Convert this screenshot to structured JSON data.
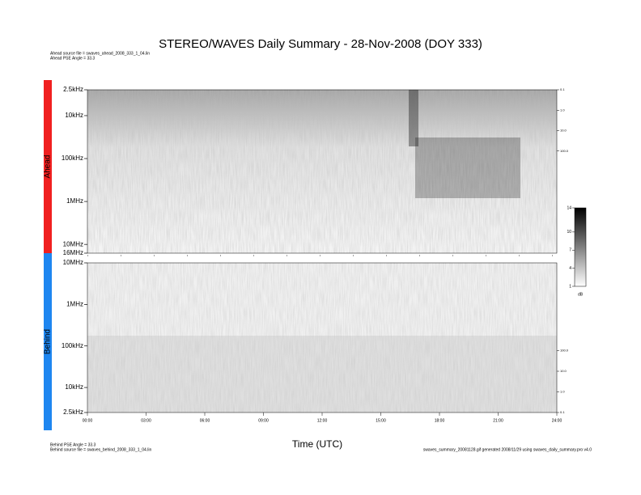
{
  "chart_data": [
    {
      "type": "heatmap",
      "title": "STEREO/WAVES Daily Summary - 28-Nov-2008 (DOY 333)",
      "name": "Ahead",
      "notes": [
        "Ahead source file = swaves_ahead_2008_333_1_04.lin",
        "Ahead PSE Angle = 33.3"
      ],
      "color": "#f02020",
      "log_y": true,
      "ylim": [
        16000000,
        2500
      ],
      "yticks": [
        {
          "value": 2500,
          "label": "2.5kHz"
        },
        {
          "value": 10000,
          "label": "10kHz"
        },
        {
          "value": 100000,
          "label": "100kHz"
        },
        {
          "value": 1000000,
          "label": "1MHz"
        },
        {
          "value": 10000000,
          "label": "10MHz"
        },
        {
          "value": 16000000,
          "label": "16MHz"
        }
      ],
      "y2lim": [
        10000000,
        0.1
      ],
      "y2ticks": [
        {
          "value": 0.1,
          "label": "0.1"
        },
        {
          "value": 1,
          "label": "1.0"
        },
        {
          "value": 10,
          "label": "10.0"
        },
        {
          "value": 100,
          "label": "100.0"
        }
      ],
      "colorbar": {
        "lim": [
          1,
          14
        ],
        "ticks": [
          1,
          4,
          7,
          10,
          14
        ],
        "label": "dB"
      }
    },
    {
      "type": "heatmap",
      "name": "Behind",
      "notes": [
        "Behind PSE Angle = 33.3",
        "Behind source file = swaves_behind_2008_333_1_04.lin"
      ],
      "footer": "swaves_summary_20081128.gif generated 2008/11/29 using swaves_daily_summary.pro v4.0",
      "color": "#1e86f0",
      "log_y": true,
      "ylim": [
        2500,
        10000000
      ],
      "yticks": [
        {
          "value": 10000000,
          "label": "10MHz"
        },
        {
          "value": 1000000,
          "label": "1MHz"
        },
        {
          "value": 100000,
          "label": "100kHz"
        },
        {
          "value": 10000,
          "label": "10kHz"
        },
        {
          "value": 2500,
          "label": "2.5kHz"
        }
      ],
      "y2lim": [
        0.1,
        1800000
      ],
      "y2ticks": [
        {
          "value": 100,
          "label": "100.0"
        },
        {
          "value": 10,
          "label": "10.0"
        },
        {
          "value": 1,
          "label": "1.0"
        },
        {
          "value": 0.1,
          "label": "0.1"
        }
      ],
      "xlim": [
        0,
        24
      ],
      "xticks": [
        {
          "value": 0,
          "label": "00:00"
        },
        {
          "value": 3,
          "label": "03:00"
        },
        {
          "value": 6,
          "label": "06:00"
        },
        {
          "value": 9,
          "label": "09:00"
        },
        {
          "value": 12,
          "label": "12:00"
        },
        {
          "value": 15,
          "label": "15:00"
        },
        {
          "value": 18,
          "label": "18:00"
        },
        {
          "value": 21,
          "label": "21:00"
        },
        {
          "value": 24,
          "label": "24:00"
        }
      ],
      "x_label": "Time (UTC)"
    }
  ]
}
